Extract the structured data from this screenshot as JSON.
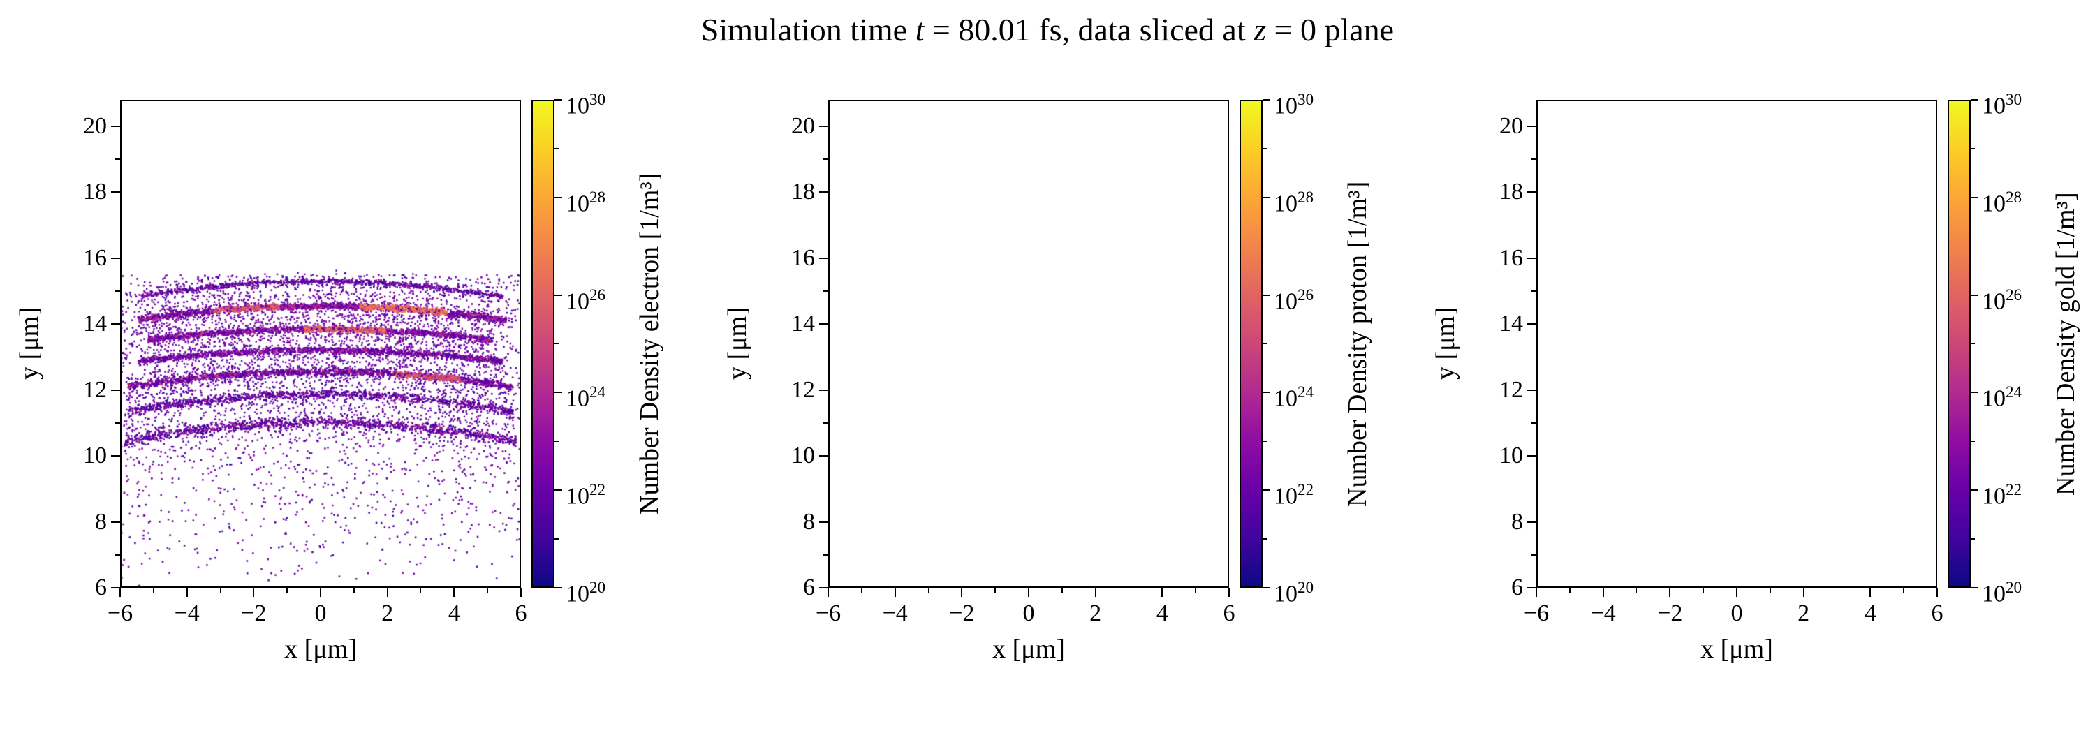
{
  "figure": {
    "title": {
      "pre": "Simulation time ",
      "var1": "t",
      "mid": " = 80.01 fs, data sliced at ",
      "var2": "z",
      "post": " = 0 plane"
    },
    "simulation_time_fs": 80.01,
    "slice_plane": "z = 0",
    "background_color": "#ffffff",
    "axis_color": "#000000"
  },
  "colormap": {
    "name": "plasma",
    "stops": [
      "#0d0887",
      "#41049d",
      "#6a00a8",
      "#8f0da4",
      "#b12a90",
      "#cc4778",
      "#e16462",
      "#f2844b",
      "#fca636",
      "#fcce25",
      "#f0f921"
    ]
  },
  "chart_data": [
    {
      "type": "scatter",
      "species": "electron",
      "xlabel": "x [μm]",
      "ylabel": "y [μm]",
      "xlim": [
        -6,
        6
      ],
      "ylim": [
        6,
        20.8
      ],
      "xticks": [
        -6,
        -4,
        -2,
        0,
        2,
        4,
        6
      ],
      "yticks": [
        6,
        8,
        10,
        12,
        14,
        16,
        18,
        20
      ],
      "xminor": [
        -5,
        -3,
        -1,
        1,
        3,
        5
      ],
      "yminor": [
        7,
        9,
        11,
        13,
        15,
        17,
        19
      ],
      "grid": false,
      "colorbar": {
        "label": "Number Density electron [1/m³]",
        "scale": "log",
        "tick_exponents": [
          20,
          22,
          24,
          26,
          28,
          30
        ],
        "minor_exponents": [
          21,
          23,
          25,
          27,
          29
        ],
        "range_exponents": [
          20,
          30
        ],
        "colormap": "plasma"
      },
      "scatter": {
        "seed": 20240801,
        "point_size": 2.8,
        "bands": [
          {
            "y_center": 15.3,
            "edge_droop": 0.55,
            "x_range": [
              -5.4,
              5.5
            ],
            "thickness": 0.1,
            "n": 600,
            "log_density_range": [
              21.0,
              24.0
            ],
            "hotspots": []
          },
          {
            "y_center": 14.55,
            "edge_droop": 0.5,
            "x_range": [
              -5.5,
              5.6
            ],
            "thickness": 0.13,
            "n": 1500,
            "log_density_range": [
              21.5,
              25.0
            ],
            "hotspots": [
              {
                "x_range": [
                  1.2,
                  3.8
                ],
                "log_density_range": [
                  25.5,
                  27.2
                ]
              },
              {
                "x_range": [
                  -3.2,
                  -1.2
                ],
                "log_density_range": [
                  24.5,
                  26.2
                ]
              }
            ]
          },
          {
            "y_center": 13.85,
            "edge_droop": 0.45,
            "x_range": [
              -5.2,
              5.2
            ],
            "thickness": 0.13,
            "n": 1200,
            "log_density_range": [
              21.5,
              24.8
            ],
            "hotspots": [
              {
                "x_range": [
                  -0.5,
                  2.0
                ],
                "log_density_range": [
                  25.0,
                  26.8
                ]
              }
            ]
          },
          {
            "y_center": 13.2,
            "edge_droop": 0.4,
            "x_range": [
              -5.5,
              5.5
            ],
            "thickness": 0.13,
            "n": 1100,
            "log_density_range": [
              21.3,
              24.5
            ],
            "hotspots": []
          },
          {
            "y_center": 12.55,
            "edge_droop": 0.5,
            "x_range": [
              -5.8,
              5.8
            ],
            "thickness": 0.15,
            "n": 1300,
            "log_density_range": [
              21.3,
              24.8
            ],
            "hotspots": [
              {
                "x_range": [
                  2.2,
                  4.2
                ],
                "log_density_range": [
                  24.5,
                  26.0
                ]
              }
            ]
          },
          {
            "y_center": 11.85,
            "edge_droop": 0.55,
            "x_range": [
              -5.8,
              5.8
            ],
            "thickness": 0.18,
            "n": 800,
            "log_density_range": [
              21.0,
              23.8
            ],
            "hotspots": []
          },
          {
            "y_center": 11.0,
            "edge_droop": 0.6,
            "x_range": [
              -5.9,
              5.9
            ],
            "thickness": 0.22,
            "n": 900,
            "log_density_range": [
              21.0,
              24.2
            ],
            "hotspots": []
          }
        ],
        "background": {
          "n": 2600,
          "x_range": [
            -6,
            6
          ],
          "y_range": [
            6,
            15.5
          ],
          "top_bias": 0.55,
          "log_density_range": [
            20.8,
            23.2
          ]
        }
      }
    },
    {
      "type": "scatter",
      "species": "proton",
      "xlabel": "x [μm]",
      "ylabel": "y [μm]",
      "xlim": [
        -6,
        6
      ],
      "ylim": [
        6,
        20.8
      ],
      "xticks": [
        -6,
        -4,
        -2,
        0,
        2,
        4,
        6
      ],
      "yticks": [
        6,
        8,
        10,
        12,
        14,
        16,
        18,
        20
      ],
      "xminor": [
        -5,
        -3,
        -1,
        1,
        3,
        5
      ],
      "yminor": [
        7,
        9,
        11,
        13,
        15,
        17,
        19
      ],
      "grid": false,
      "colorbar": {
        "label": "Number Density proton [1/m³]",
        "scale": "log",
        "tick_exponents": [
          20,
          22,
          24,
          26,
          28,
          30
        ],
        "minor_exponents": [
          21,
          23,
          25,
          27,
          29
        ],
        "range_exponents": [
          20,
          30
        ],
        "colormap": "plasma"
      },
      "scatter": {
        "seed": 1,
        "point_size": 2.8,
        "bands": [],
        "background": null
      }
    },
    {
      "type": "scatter",
      "species": "gold",
      "xlabel": "x [μm]",
      "ylabel": "y [μm]",
      "xlim": [
        -6,
        6
      ],
      "ylim": [
        6,
        20.8
      ],
      "xticks": [
        -6,
        -4,
        -2,
        0,
        2,
        4,
        6
      ],
      "yticks": [
        6,
        8,
        10,
        12,
        14,
        16,
        18,
        20
      ],
      "xminor": [
        -5,
        -3,
        -1,
        1,
        3,
        5
      ],
      "yminor": [
        7,
        9,
        11,
        13,
        15,
        17,
        19
      ],
      "grid": false,
      "colorbar": {
        "label": "Number Density gold [1/m³]",
        "scale": "log",
        "tick_exponents": [
          20,
          22,
          24,
          26,
          28,
          30
        ],
        "minor_exponents": [
          21,
          23,
          25,
          27,
          29
        ],
        "range_exponents": [
          20,
          30
        ],
        "colormap": "plasma"
      },
      "scatter": {
        "seed": 2,
        "point_size": 2.8,
        "bands": [],
        "background": null
      }
    }
  ]
}
